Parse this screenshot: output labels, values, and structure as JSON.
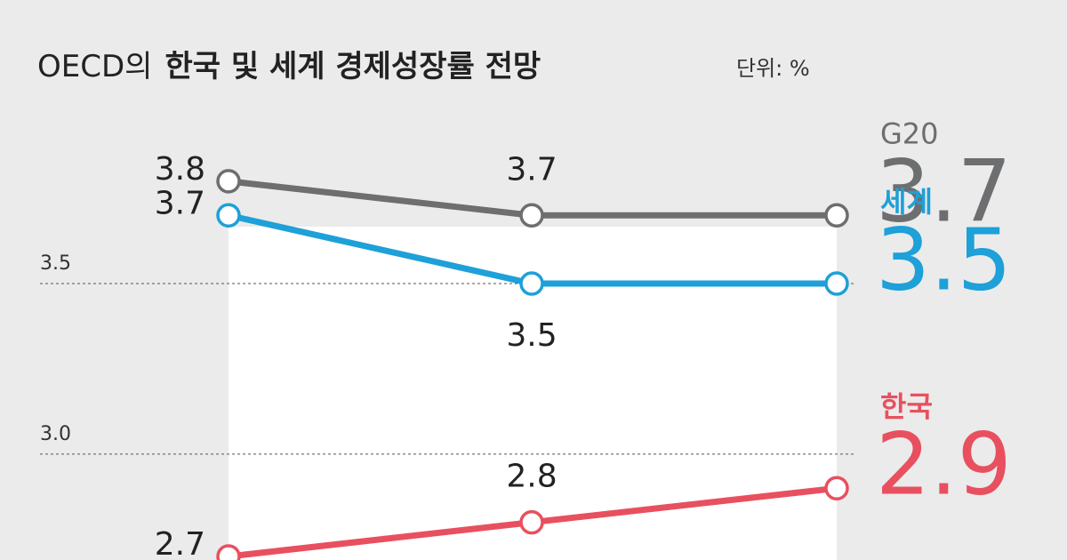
{
  "chart_data": {
    "type": "line",
    "title_lead": "OECD의",
    "title": "한국 및 세계 경제성장률 전망",
    "unit": "단위: %",
    "categories": [
      null,
      null,
      null
    ],
    "series": [
      {
        "name": "G20",
        "color": "#6d6e70",
        "values": [
          3.8,
          3.7,
          3.7
        ]
      },
      {
        "name": "세계",
        "color": "#1ea0d8",
        "values": [
          3.7,
          3.5,
          3.5
        ]
      },
      {
        "name": "한국",
        "color": "#e8505f",
        "values": [
          2.7,
          2.8,
          2.9
        ]
      }
    ],
    "ylim": [
      2.7,
      4.3
    ],
    "yticks": [
      {
        "value": 3,
        "label": "3.0"
      },
      3.5
    ],
    "grid": true
  }
}
